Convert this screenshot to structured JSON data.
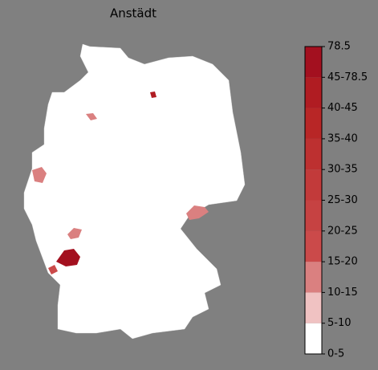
{
  "title": "Anstädt",
  "colorbar": {
    "labels": [
      "0-5",
      "5-10",
      "10-15",
      "15-20",
      "20-25",
      "25-30",
      "30-35",
      "35-40",
      "40-45",
      "45-78.5",
      "78.5"
    ],
    "colors": [
      "#ffffff",
      "#f0c2c2",
      "#da8080",
      "#cb4a4a",
      "#c64242",
      "#c23a3a",
      "#bd3030",
      "#b82626",
      "#b01c22",
      "#a3101f"
    ]
  }
}
